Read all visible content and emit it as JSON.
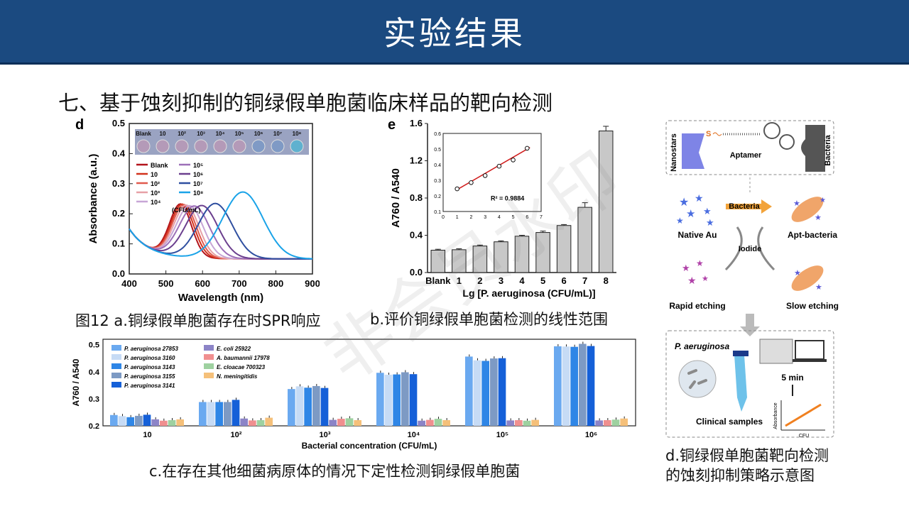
{
  "header": {
    "title": "实验结果"
  },
  "section_title": "七、基于蚀刻抑制的铜绿假单胞菌临床样品的靶向检测",
  "captions": {
    "a": "图12 a.铜绿假单胞菌存在时SPR响应",
    "b": "b.评价铜绿假单胞菌检测的线性范围",
    "c": "c.在存在其他细菌病原体的情况下定性检测铜绿假单胞菌",
    "d_line1": "d.铜绿假单胞菌靶向检测",
    "d_line2": "的蚀刻抑制策略示意图"
  },
  "watermark": "非会员水印",
  "chart_data": [
    {
      "panel": "d",
      "type": "line",
      "xlabel": "Wavelength (nm)",
      "ylabel": "Absorbance (a.u.)",
      "xlim": [
        400,
        900
      ],
      "ylim": [
        0,
        0.5
      ],
      "xticks": [
        "400",
        "500",
        "600",
        "700",
        "800",
        "900"
      ],
      "yticks": [
        "0.0",
        "0.1",
        "0.2",
        "0.3",
        "0.4",
        "0.5"
      ],
      "legend_unit": "(CFU/mL)",
      "well_labels": [
        "Blank",
        "10",
        "10²",
        "10³",
        "10⁴",
        "10⁵",
        "10⁶",
        "10⁷",
        "10⁸"
      ],
      "series": [
        {
          "name": "Blank",
          "color": "#b3141b",
          "peak": 540,
          "peak_abs": 0.225,
          "width": 42
        },
        {
          "name": "10",
          "color": "#d2321c",
          "peak": 545,
          "peak_abs": 0.225,
          "width": 44
        },
        {
          "name": "10²",
          "color": "#e05a4e",
          "peak": 550,
          "peak_abs": 0.224,
          "width": 46
        },
        {
          "name": "10³",
          "color": "#e7a0a6",
          "peak": 556,
          "peak_abs": 0.223,
          "width": 48
        },
        {
          "name": "10⁴",
          "color": "#c7a6d6",
          "peak": 565,
          "peak_abs": 0.222,
          "width": 52
        },
        {
          "name": "10⁵",
          "color": "#9d6fb8",
          "peak": 578,
          "peak_abs": 0.222,
          "width": 58
        },
        {
          "name": "10⁶",
          "color": "#6b3f8e",
          "peak": 598,
          "peak_abs": 0.225,
          "width": 62
        },
        {
          "name": "10⁷",
          "color": "#2f4fa0",
          "peak": 635,
          "peak_abs": 0.233,
          "width": 66
        },
        {
          "name": "10⁸",
          "color": "#1aa3e8",
          "peak": 710,
          "peak_abs": 0.272,
          "width": 78
        }
      ]
    },
    {
      "panel": "e",
      "type": "bar",
      "xlabel": "Lg [P. aeruginosa (CFU/mL)]",
      "ylabel": "A760 / A540",
      "ylim": [
        0,
        1.6
      ],
      "yticks": [
        "0.0",
        "0.4",
        "0.8",
        "1.2",
        "1.6"
      ],
      "categories": [
        "Blank",
        "1",
        "2",
        "3",
        "4",
        "5",
        "6",
        "7",
        "8"
      ],
      "values": [
        0.24,
        0.245,
        0.285,
        0.33,
        0.39,
        0.43,
        0.505,
        0.7,
        1.52
      ],
      "errors": [
        0.01,
        0.01,
        0.01,
        0.01,
        0.01,
        0.015,
        0.01,
        0.05,
        0.05
      ],
      "inset": {
        "type": "scatter",
        "x": [
          1,
          2,
          3,
          4,
          5,
          6
        ],
        "y": [
          0.245,
          0.285,
          0.33,
          0.39,
          0.43,
          0.505
        ],
        "xlim": [
          0,
          7
        ],
        "ylim": [
          0.1,
          0.6
        ],
        "xticks": [
          "0",
          "1",
          "2",
          "3",
          "4",
          "5",
          "6",
          "7"
        ],
        "yticks": [
          "0.1",
          "0.2",
          "0.3",
          "0.4",
          "0.5",
          "0.6"
        ],
        "annotation": "R² = 0.9884"
      }
    },
    {
      "panel": "c",
      "type": "bar",
      "xlabel": "Bacterial concentration (CFU/mL)",
      "ylabel": "A760 / A540",
      "ylim": [
        0.2,
        0.52
      ],
      "yticks": [
        "0.2",
        "0.3",
        "0.4",
        "0.5"
      ],
      "categories": [
        "10",
        "10²",
        "10³",
        "10⁴",
        "10⁵",
        "10⁶"
      ],
      "series": [
        {
          "name": "P. aeruginosa 27853",
          "color": "#6aa9f0",
          "values": [
            0.24,
            0.288,
            0.336,
            0.396,
            0.456,
            0.494
          ]
        },
        {
          "name": "P. aeruginosa 3160",
          "color": "#c6dbf5",
          "values": [
            0.236,
            0.288,
            0.346,
            0.389,
            0.442,
            0.493
          ]
        },
        {
          "name": "P. aeruginosa 3143",
          "color": "#2f86e6",
          "values": [
            0.232,
            0.288,
            0.341,
            0.39,
            0.44,
            0.492
          ]
        },
        {
          "name": "P. aeruginosa 3155",
          "color": "#7d9ac4",
          "values": [
            0.237,
            0.288,
            0.347,
            0.398,
            0.449,
            0.503
          ]
        },
        {
          "name": "P. aeruginosa 3141",
          "color": "#1560d8",
          "values": [
            0.241,
            0.296,
            0.34,
            0.391,
            0.45,
            0.495
          ]
        },
        {
          "name": "E. coli 25922",
          "color": "#8c84c7",
          "values": [
            0.224,
            0.227,
            0.222,
            0.219,
            0.22,
            0.22
          ]
        },
        {
          "name": "A. baumannii 17978",
          "color": "#f08f8f",
          "values": [
            0.219,
            0.22,
            0.226,
            0.222,
            0.221,
            0.221
          ]
        },
        {
          "name": "E. cloacae 700323",
          "color": "#9ed1a0",
          "values": [
            0.221,
            0.221,
            0.228,
            0.226,
            0.219,
            0.223
          ]
        },
        {
          "name": "N. meningitidis",
          "color": "#f5c07a",
          "values": [
            0.224,
            0.23,
            0.221,
            0.221,
            0.222,
            0.227
          ]
        }
      ]
    }
  ],
  "schematic": {
    "nanostars": "Nanostars",
    "aptamer": "Aptamer",
    "bacteria": "Bacteria",
    "bacteria_arrow": "Bacteria",
    "native_au": "Native Au",
    "apt_bacteria": "Apt-bacteria",
    "iodide": "Iodide",
    "rapid_etching": "Rapid etching",
    "slow_etching": "Slow etching",
    "p_aeruginosa": "P. aeruginosa",
    "five_min": "5 min",
    "clinical_samples": "Clinical samples",
    "absorbance": "Absorbance",
    "cfu": "CFU"
  },
  "panel_labels": {
    "d": "d",
    "e": "e"
  }
}
